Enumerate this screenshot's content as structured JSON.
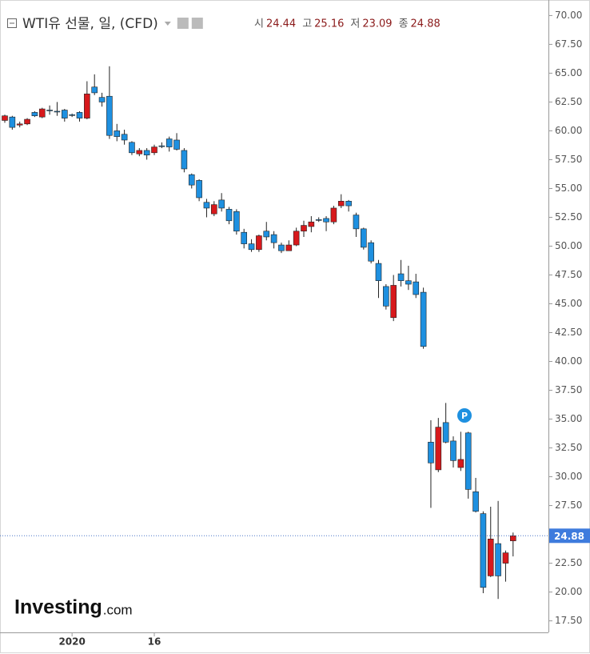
{
  "chart_data": {
    "type": "candlestick",
    "title": "WTI유 선물, 일, (CFD)",
    "quote": [
      {
        "label": "시",
        "value": 24.44
      },
      {
        "label": "고",
        "value": 25.16
      },
      {
        "label": "저",
        "value": 23.09
      },
      {
        "label": "종",
        "value": 24.88
      }
    ],
    "categories": [
      null,
      null,
      null,
      null,
      null,
      null,
      null,
      null,
      null,
      "2020",
      null,
      null,
      null,
      null,
      null,
      null,
      null,
      null,
      null,
      null,
      "16",
      null,
      null,
      null,
      null,
      null,
      null,
      null,
      null,
      null,
      null,
      null,
      null,
      null,
      null,
      null,
      null,
      null,
      null,
      null,
      null,
      null,
      null,
      null,
      null,
      null,
      null,
      null,
      null,
      null,
      null,
      null,
      null,
      null,
      null,
      null,
      null,
      null,
      null,
      null,
      null,
      null,
      null,
      null,
      null,
      null,
      null,
      null,
      null
    ],
    "open": [
      60.9,
      61.2,
      60.5,
      60.6,
      61.6,
      61.2,
      61.8,
      61.7,
      61.8,
      61.4,
      61.6,
      61.1,
      63.8,
      62.9,
      63.0,
      60.0,
      59.7,
      59.0,
      58.0,
      58.3,
      58.1,
      58.7,
      59.3,
      59.2,
      58.3,
      56.2,
      55.7,
      53.8,
      52.8,
      54.0,
      53.2,
      53.0,
      51.2,
      50.2,
      49.7,
      51.3,
      51.0,
      50.1,
      49.6,
      50.1,
      51.3,
      51.7,
      52.3,
      52.4,
      52.1,
      53.5,
      53.9,
      52.7,
      51.5,
      50.3,
      48.5,
      46.5,
      43.8,
      47.6,
      47.0,
      46.9,
      46.0,
      33.0,
      30.6,
      34.7,
      33.1,
      30.8,
      33.8,
      28.7,
      26.8,
      21.4,
      24.2,
      22.5,
      24.44
    ],
    "high": [
      61.4,
      61.3,
      60.8,
      61.1,
      61.7,
      62.0,
      62.2,
      62.5,
      61.9,
      61.5,
      61.7,
      64.3,
      64.9,
      63.3,
      65.6,
      60.6,
      60.1,
      59.1,
      58.5,
      58.5,
      58.8,
      59.0,
      59.5,
      59.8,
      58.5,
      56.3,
      55.8,
      54.1,
      53.9,
      54.6,
      53.4,
      53.2,
      51.5,
      50.6,
      51.0,
      52.1,
      51.3,
      50.3,
      50.5,
      51.6,
      52.2,
      52.6,
      52.5,
      52.6,
      53.5,
      54.5,
      54.0,
      52.9,
      51.6,
      50.5,
      48.8,
      46.7,
      47.5,
      48.8,
      48.3,
      47.6,
      46.4,
      34.9,
      35.1,
      36.4,
      33.5,
      33.9,
      33.9,
      29.9,
      27.0,
      27.4,
      27.9,
      23.6,
      25.16
    ],
    "low": [
      60.7,
      60.1,
      60.3,
      60.5,
      61.2,
      61.1,
      61.4,
      61.3,
      60.8,
      61.2,
      60.8,
      61.0,
      63.1,
      62.1,
      59.3,
      59.1,
      58.8,
      57.9,
      57.8,
      57.5,
      57.9,
      58.5,
      58.2,
      58.3,
      56.4,
      55.0,
      53.9,
      52.5,
      52.6,
      53.0,
      51.9,
      51.0,
      49.8,
      49.5,
      49.5,
      50.5,
      49.8,
      49.4,
      49.6,
      50.0,
      50.8,
      51.2,
      52.1,
      51.3,
      51.9,
      53.3,
      53.0,
      50.8,
      49.7,
      48.5,
      45.5,
      44.5,
      43.5,
      46.5,
      46.2,
      45.5,
      41.1,
      27.3,
      30.4,
      32.9,
      30.8,
      30.5,
      28.1,
      26.9,
      19.9,
      21.3,
      19.4,
      20.9,
      23.09
    ],
    "close": [
      61.3,
      60.3,
      60.6,
      61.0,
      61.3,
      61.9,
      61.8,
      61.7,
      61.1,
      61.4,
      61.1,
      63.2,
      63.3,
      62.5,
      59.6,
      59.5,
      59.2,
      58.1,
      58.3,
      57.9,
      58.6,
      58.7,
      58.6,
      58.4,
      56.7,
      55.3,
      54.2,
      53.3,
      53.6,
      53.3,
      52.2,
      51.3,
      50.2,
      49.7,
      50.9,
      50.8,
      50.3,
      49.6,
      50.1,
      51.3,
      51.8,
      52.1,
      52.3,
      52.1,
      53.3,
      53.9,
      53.5,
      51.5,
      49.9,
      48.7,
      47.0,
      44.8,
      46.6,
      47.0,
      46.7,
      45.8,
      41.3,
      31.2,
      34.3,
      33.0,
      31.4,
      31.5,
      28.9,
      27.0,
      20.4,
      24.6,
      21.4,
      23.4,
      24.88
    ],
    "up_color": "#d7191c",
    "down_color": "#1e90e0",
    "ylim": [
      16.5,
      71
    ],
    "yticks": [
      {
        "value": 17.5,
        "label": "17.50"
      },
      {
        "value": 20,
        "label": "20.00"
      },
      {
        "value": 22.5,
        "label": "22.50"
      },
      {
        "value": 25,
        "label": "25.00"
      },
      {
        "value": 27.5,
        "label": "27.50"
      },
      {
        "value": 30,
        "label": "30.00"
      },
      {
        "value": 32.5,
        "label": "32.50"
      },
      {
        "value": 35,
        "label": "35.00"
      },
      {
        "value": 37.5,
        "label": "37.50"
      },
      {
        "value": 40,
        "label": "40.00"
      },
      {
        "value": 42.5,
        "label": "42.50"
      },
      {
        "value": 45,
        "label": "45.00"
      },
      {
        "value": 47.5,
        "label": "47.50"
      },
      {
        "value": 50,
        "label": "50.00"
      },
      {
        "value": 52.5,
        "label": "52.50"
      },
      {
        "value": 55,
        "label": "55.00"
      },
      {
        "value": 57.5,
        "label": "57.50"
      },
      {
        "value": 60,
        "label": "60.00"
      },
      {
        "value": 62.5,
        "label": "62.50"
      },
      {
        "value": 65,
        "label": "65.00"
      },
      {
        "value": 67.5,
        "label": "67.50"
      },
      {
        "value": 70,
        "label": "70.00"
      }
    ],
    "last_price": 24.88,
    "marker": "P",
    "logo": {
      "brand": "Investing",
      "suffix": ".com"
    }
  }
}
